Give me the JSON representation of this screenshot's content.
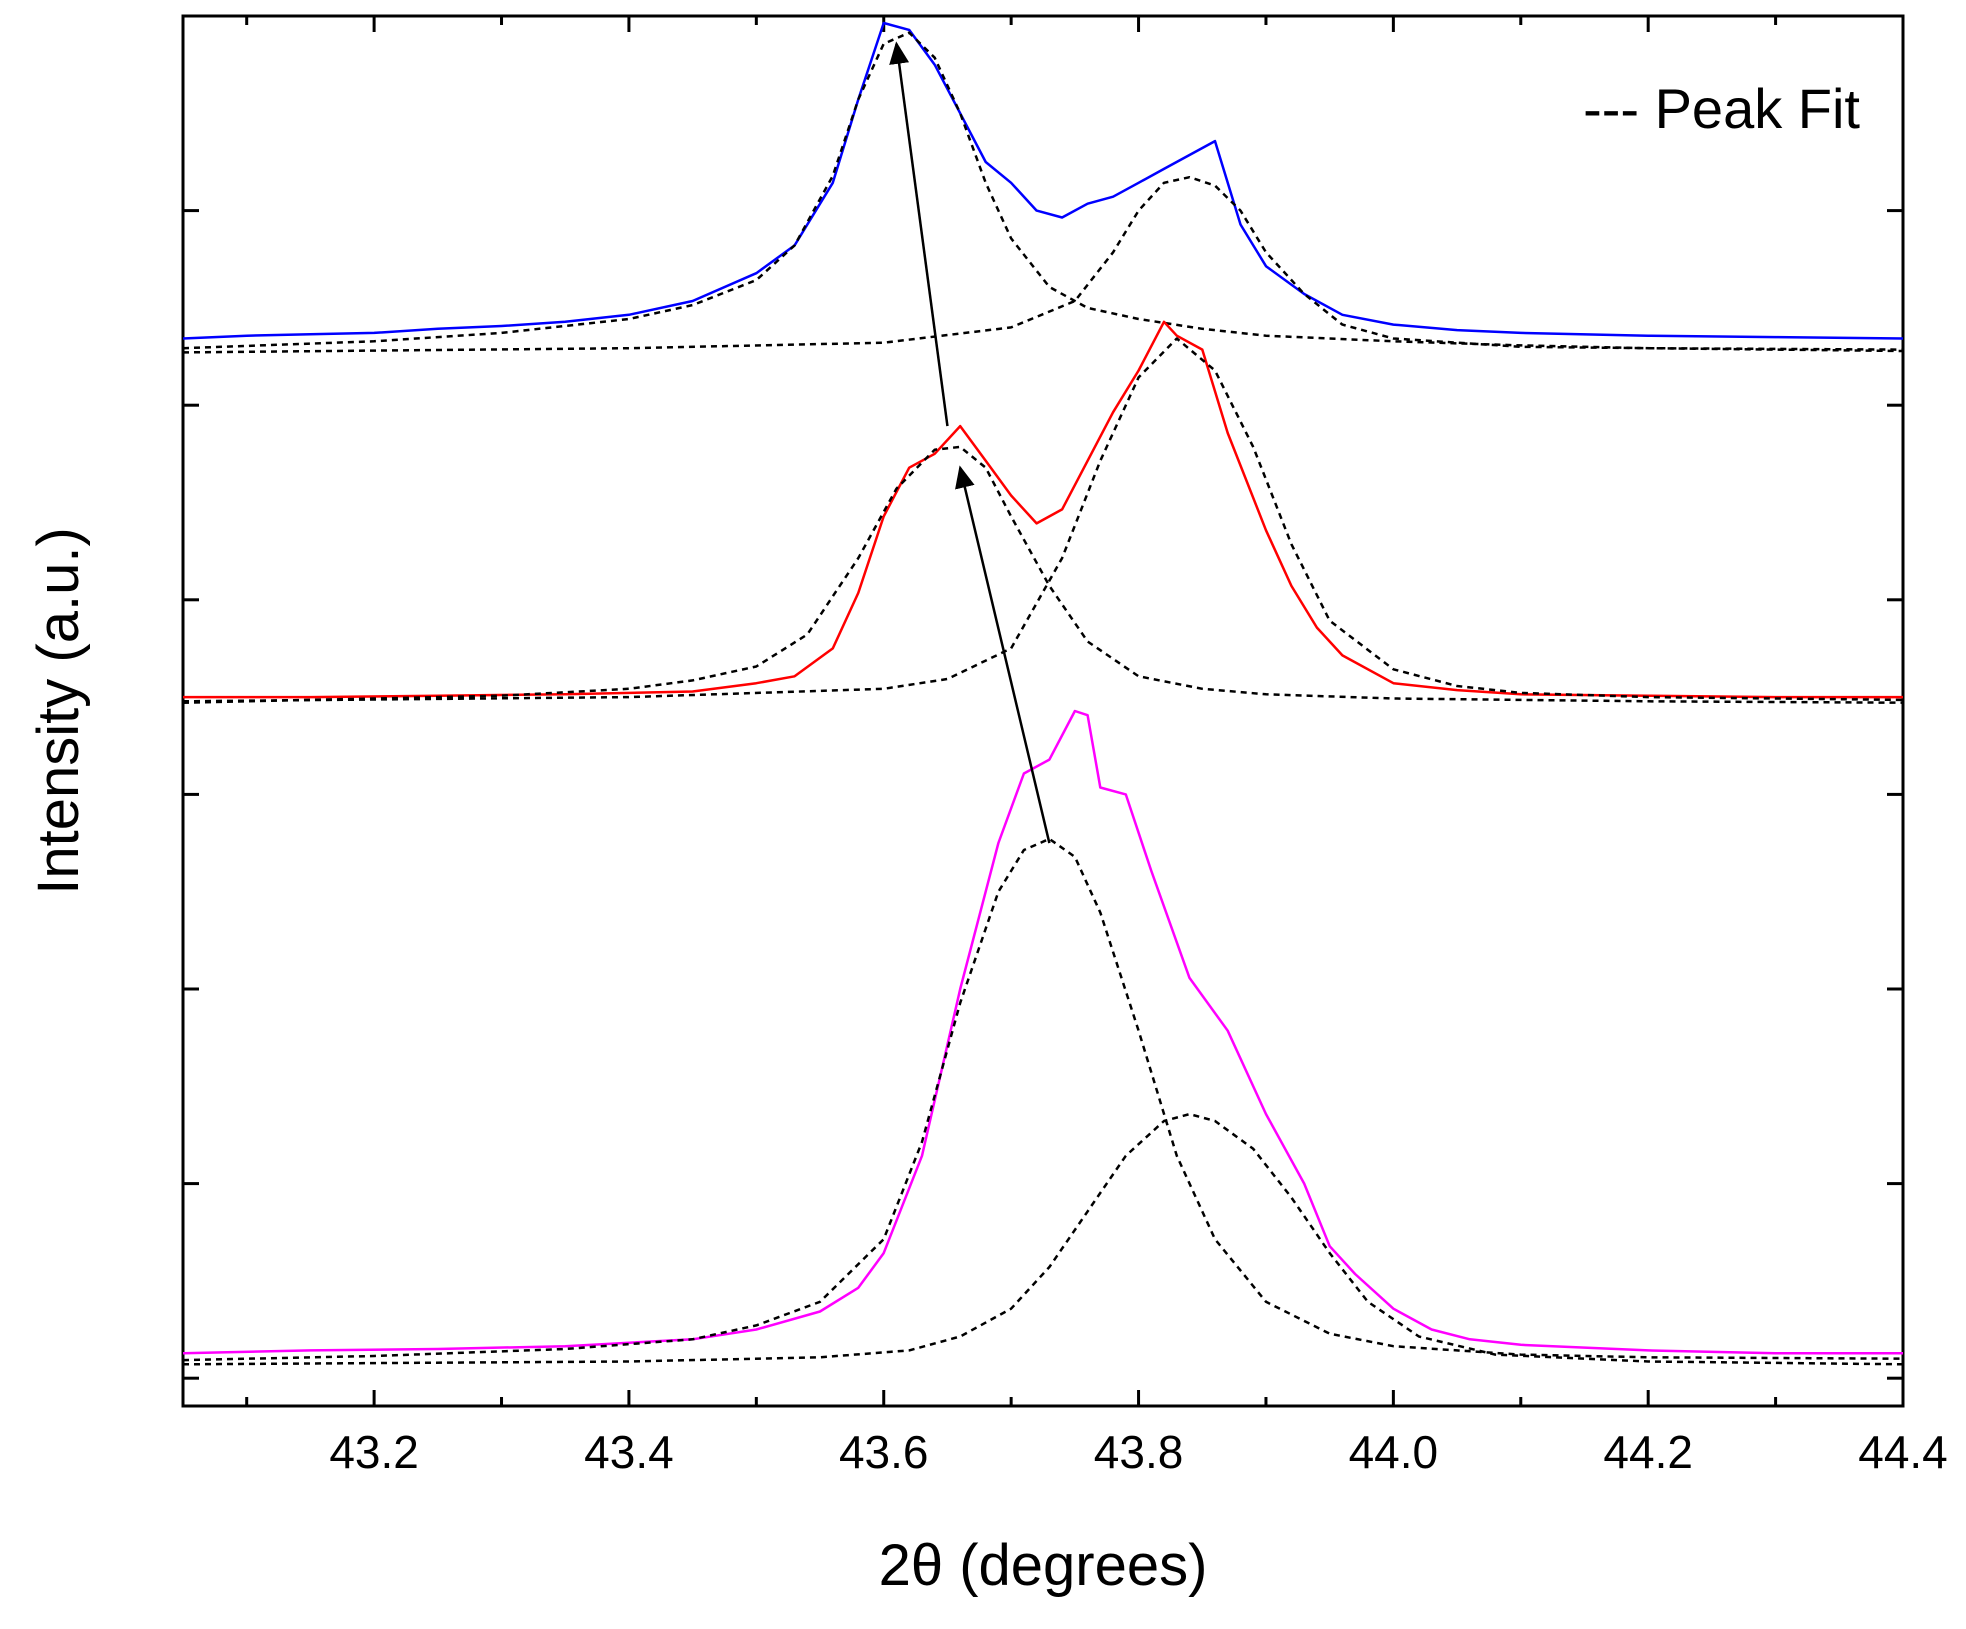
{
  "chart_data": {
    "type": "line",
    "title": "",
    "xlabel": "2θ (degrees)",
    "ylabel": "Intensity (a.u.)",
    "xlim": [
      43.05,
      44.4
    ],
    "ylim": [
      0,
      1
    ],
    "x_ticks": [
      43.2,
      43.4,
      43.6,
      43.8,
      44.0,
      44.2,
      44.4
    ],
    "x_tick_labels": [
      "43.2",
      "43.4",
      "43.6",
      "43.8",
      "44.0",
      "44.2",
      "44.4"
    ],
    "y_ticks": [
      0.02,
      0.16,
      0.3,
      0.44,
      0.58,
      0.72,
      0.86
    ],
    "y_tick_labels": [],
    "legend": {
      "position": "top-right",
      "entries": [
        {
          "label": "--- Peak Fit",
          "style": "dashed",
          "color": "#000000"
        }
      ]
    },
    "series": [
      {
        "name": "Top (blue) pattern",
        "color": "#0000ff",
        "style": "solid",
        "x": [
          43.05,
          43.1,
          43.15,
          43.2,
          43.25,
          43.3,
          43.35,
          43.4,
          43.45,
          43.5,
          43.53,
          43.56,
          43.58,
          43.6,
          43.62,
          43.64,
          43.66,
          43.68,
          43.7,
          43.72,
          43.74,
          43.76,
          43.78,
          43.8,
          43.82,
          43.84,
          43.86,
          43.88,
          43.9,
          43.93,
          43.96,
          44.0,
          44.05,
          44.1,
          44.2,
          44.3,
          44.4
        ],
        "y": [
          0.768,
          0.77,
          0.771,
          0.772,
          0.775,
          0.777,
          0.78,
          0.785,
          0.795,
          0.815,
          0.835,
          0.88,
          0.94,
          0.995,
          0.99,
          0.965,
          0.93,
          0.895,
          0.88,
          0.86,
          0.855,
          0.865,
          0.87,
          0.88,
          0.89,
          0.9,
          0.91,
          0.85,
          0.82,
          0.8,
          0.785,
          0.778,
          0.774,
          0.772,
          0.77,
          0.769,
          0.768
        ]
      },
      {
        "name": "Top fit peak 1",
        "color": "#000000",
        "style": "dashed",
        "x": [
          43.05,
          43.2,
          43.3,
          43.4,
          43.45,
          43.5,
          43.53,
          43.56,
          43.58,
          43.6,
          43.62,
          43.64,
          43.66,
          43.68,
          43.7,
          43.73,
          43.76,
          43.8,
          43.85,
          43.9,
          44.0,
          44.1,
          44.2,
          44.4
        ],
        "y": [
          0.761,
          0.766,
          0.772,
          0.782,
          0.792,
          0.81,
          0.835,
          0.885,
          0.94,
          0.98,
          0.988,
          0.97,
          0.93,
          0.88,
          0.84,
          0.805,
          0.79,
          0.782,
          0.775,
          0.77,
          0.766,
          0.763,
          0.761,
          0.76
        ]
      },
      {
        "name": "Top fit peak 2",
        "color": "#000000",
        "style": "dashed",
        "x": [
          43.05,
          43.4,
          43.6,
          43.7,
          43.75,
          43.78,
          43.8,
          43.82,
          43.84,
          43.86,
          43.88,
          43.9,
          43.93,
          43.96,
          44.0,
          44.1,
          44.4
        ],
        "y": [
          0.758,
          0.761,
          0.765,
          0.776,
          0.795,
          0.83,
          0.86,
          0.88,
          0.884,
          0.878,
          0.86,
          0.83,
          0.8,
          0.778,
          0.768,
          0.762,
          0.759
        ]
      },
      {
        "name": "Middle (red) pattern",
        "color": "#ff0000",
        "style": "solid",
        "x": [
          43.05,
          43.15,
          43.25,
          43.35,
          43.45,
          43.5,
          43.53,
          43.56,
          43.58,
          43.6,
          43.62,
          43.64,
          43.66,
          43.68,
          43.7,
          43.72,
          43.74,
          43.76,
          43.78,
          43.8,
          43.82,
          43.83,
          43.85,
          43.87,
          43.9,
          43.92,
          43.94,
          43.96,
          44.0,
          44.05,
          44.1,
          44.2,
          44.3,
          44.4
        ],
        "y": [
          0.51,
          0.51,
          0.511,
          0.512,
          0.514,
          0.52,
          0.525,
          0.545,
          0.585,
          0.64,
          0.675,
          0.685,
          0.705,
          0.68,
          0.655,
          0.635,
          0.645,
          0.68,
          0.715,
          0.745,
          0.78,
          0.77,
          0.76,
          0.7,
          0.63,
          0.59,
          0.56,
          0.54,
          0.52,
          0.515,
          0.512,
          0.511,
          0.51,
          0.51
        ]
      },
      {
        "name": "Middle fit peak 1",
        "color": "#000000",
        "style": "dashed",
        "x": [
          43.05,
          43.2,
          43.3,
          43.4,
          43.45,
          43.5,
          43.54,
          43.58,
          43.61,
          43.64,
          43.66,
          43.68,
          43.7,
          43.73,
          43.76,
          43.8,
          43.85,
          43.9,
          44.0,
          44.2,
          44.4
        ],
        "y": [
          0.506,
          0.509,
          0.511,
          0.516,
          0.522,
          0.532,
          0.555,
          0.61,
          0.66,
          0.688,
          0.69,
          0.675,
          0.64,
          0.59,
          0.55,
          0.525,
          0.516,
          0.512,
          0.509,
          0.507,
          0.506
        ]
      },
      {
        "name": "Middle fit peak 2",
        "color": "#000000",
        "style": "dashed",
        "x": [
          43.05,
          43.4,
          43.6,
          43.65,
          43.7,
          43.74,
          43.77,
          43.8,
          43.83,
          43.86,
          43.89,
          43.92,
          43.95,
          44.0,
          44.05,
          44.1,
          44.2,
          44.4
        ],
        "y": [
          0.507,
          0.51,
          0.516,
          0.523,
          0.545,
          0.61,
          0.68,
          0.74,
          0.768,
          0.745,
          0.69,
          0.62,
          0.565,
          0.53,
          0.518,
          0.513,
          0.51,
          0.508
        ]
      },
      {
        "name": "Bottom (magenta) pattern",
        "color": "#ff00ff",
        "style": "solid",
        "x": [
          43.05,
          43.15,
          43.25,
          43.35,
          43.45,
          43.5,
          43.55,
          43.58,
          43.6,
          43.63,
          43.66,
          43.69,
          43.71,
          43.73,
          43.75,
          43.76,
          43.77,
          43.79,
          43.81,
          43.84,
          43.87,
          43.9,
          43.93,
          43.95,
          43.97,
          44.0,
          44.03,
          44.06,
          44.1,
          44.2,
          44.3,
          44.4
        ],
        "y": [
          0.038,
          0.04,
          0.041,
          0.043,
          0.048,
          0.055,
          0.068,
          0.085,
          0.11,
          0.18,
          0.3,
          0.405,
          0.455,
          0.465,
          0.5,
          0.497,
          0.445,
          0.44,
          0.385,
          0.308,
          0.27,
          0.21,
          0.16,
          0.115,
          0.095,
          0.07,
          0.055,
          0.048,
          0.044,
          0.04,
          0.038,
          0.038
        ]
      },
      {
        "name": "Bottom fit peak 1",
        "color": "#000000",
        "style": "dashed",
        "x": [
          43.05,
          43.2,
          43.35,
          43.45,
          43.5,
          43.55,
          43.6,
          43.63,
          43.66,
          43.69,
          43.71,
          43.73,
          43.75,
          43.77,
          43.8,
          43.83,
          43.86,
          43.9,
          43.95,
          44.0,
          44.1,
          44.2,
          44.4
        ],
        "y": [
          0.033,
          0.036,
          0.041,
          0.048,
          0.058,
          0.075,
          0.12,
          0.19,
          0.29,
          0.37,
          0.4,
          0.408,
          0.395,
          0.355,
          0.27,
          0.18,
          0.12,
          0.075,
          0.052,
          0.043,
          0.037,
          0.035,
          0.034
        ]
      },
      {
        "name": "Bottom fit peak 2",
        "color": "#000000",
        "style": "dashed",
        "x": [
          43.05,
          43.4,
          43.55,
          43.62,
          43.66,
          43.7,
          43.73,
          43.76,
          43.79,
          43.82,
          43.84,
          43.86,
          43.89,
          43.92,
          43.95,
          43.98,
          44.02,
          44.08,
          44.2,
          44.4
        ],
        "y": [
          0.03,
          0.032,
          0.035,
          0.04,
          0.05,
          0.07,
          0.1,
          0.14,
          0.18,
          0.205,
          0.21,
          0.205,
          0.185,
          0.15,
          0.11,
          0.075,
          0.05,
          0.037,
          0.032,
          0.03
        ]
      }
    ],
    "annotations": [
      {
        "type": "arrow",
        "from": [
          43.73,
          0.405
        ],
        "to": [
          43.66,
          0.675
        ],
        "color": "#000000"
      },
      {
        "type": "arrow",
        "from": [
          43.65,
          0.705
        ],
        "to": [
          43.61,
          0.98
        ],
        "color": "#000000"
      }
    ]
  }
}
